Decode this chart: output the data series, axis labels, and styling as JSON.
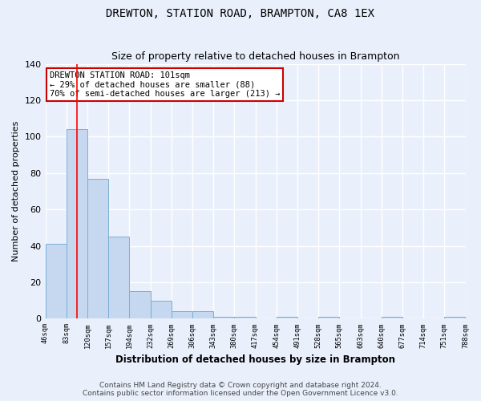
{
  "title": "DREWTON, STATION ROAD, BRAMPTON, CA8 1EX",
  "subtitle": "Size of property relative to detached houses in Brampton",
  "xlabel": "Distribution of detached houses by size in Brampton",
  "ylabel": "Number of detached properties",
  "bar_values": [
    41,
    104,
    77,
    45,
    15,
    10,
    4,
    4,
    1,
    1,
    0,
    1,
    0,
    1,
    0,
    0,
    1,
    0,
    0,
    1
  ],
  "categories": [
    "46sqm",
    "83sqm",
    "120sqm",
    "157sqm",
    "194sqm",
    "232sqm",
    "269sqm",
    "306sqm",
    "343sqm",
    "380sqm",
    "417sqm",
    "454sqm",
    "491sqm",
    "528sqm",
    "565sqm",
    "603sqm",
    "640sqm",
    "677sqm",
    "714sqm",
    "751sqm",
    "788sqm"
  ],
  "bar_color": "#c5d8f0",
  "bar_edge_color": "#7baed4",
  "background_color": "#eaf0fb",
  "grid_color": "#ffffff",
  "red_line_x": 1.5,
  "annotation_title": "DREWTON STATION ROAD: 101sqm",
  "annotation_line1": "← 29% of detached houses are smaller (88)",
  "annotation_line2": "70% of semi-detached houses are larger (213) →",
  "annotation_box_color": "#ffffff",
  "annotation_box_edge": "#cc0000",
  "ylim": [
    0,
    140
  ],
  "yticks": [
    0,
    20,
    40,
    60,
    80,
    100,
    120,
    140
  ],
  "footer_line1": "Contains HM Land Registry data © Crown copyright and database right 2024.",
  "footer_line2": "Contains public sector information licensed under the Open Government Licence v3.0.",
  "title_fontsize": 10,
  "subtitle_fontsize": 9,
  "annotation_fontsize": 7.5,
  "footer_fontsize": 6.5
}
